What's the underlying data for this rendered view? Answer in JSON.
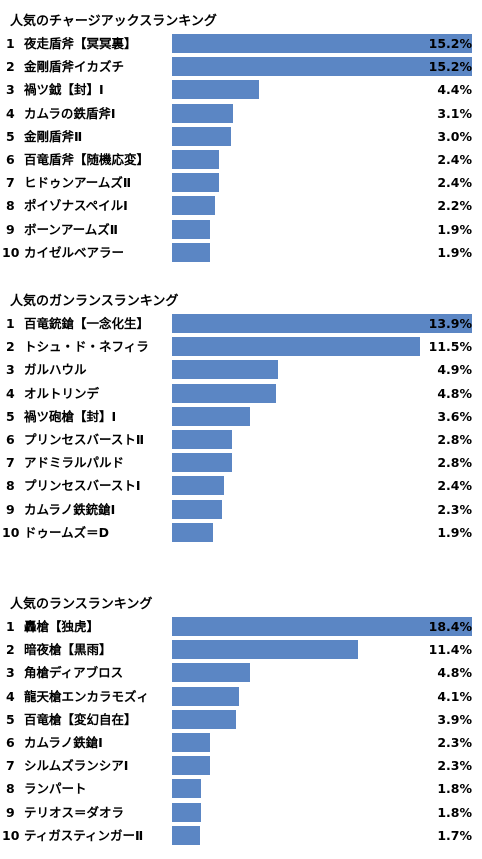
{
  "chart_data": [
    {
      "type": "bar",
      "orientation": "horizontal",
      "title": "人気のチャージアックスランキング",
      "ranks": [
        "1",
        "2",
        "3",
        "4",
        "5",
        "6",
        "7",
        "8",
        "9",
        "10"
      ],
      "categories": [
        "夜走盾斧【冥冥裏】",
        "金剛盾斧イカズチ",
        "禍ツ鉞【封】Ⅰ",
        "カムラの鉄盾斧Ⅰ",
        "金剛盾斧Ⅱ",
        "百竜盾斧【随機応変】",
        "ヒドゥンアームズⅡ",
        "ポイゾナスペイルⅠ",
        "ボーンアームズⅡ",
        "カイゼルベアラー"
      ],
      "values": [
        15.2,
        15.2,
        4.4,
        3.1,
        3.0,
        2.4,
        2.4,
        2.2,
        1.9,
        1.9
      ],
      "labels": [
        "15.2%",
        "15.2%",
        "4.4%",
        "3.1%",
        "3.0%",
        "2.4%",
        "2.4%",
        "2.2%",
        "1.9%",
        "1.9%"
      ],
      "xlim": [
        0,
        15.2
      ],
      "grid": false
    },
    {
      "type": "bar",
      "orientation": "horizontal",
      "title": "人気のガンランスランキング",
      "ranks": [
        "1",
        "2",
        "3",
        "4",
        "5",
        "6",
        "7",
        "8",
        "9",
        "10"
      ],
      "categories": [
        "百竜銃鎗【一念化生】",
        "トシュ・ド・ネフィラ",
        "ガルハウル",
        "オルトリンデ",
        "禍ツ砲槍【封】Ⅰ",
        "プリンセスバーストⅡ",
        "アドミラルパルド",
        "プリンセスバーストⅠ",
        "カムラノ鉄銃鎗Ⅰ",
        "ドゥームズ＝D"
      ],
      "values": [
        13.9,
        11.5,
        4.9,
        4.8,
        3.6,
        2.8,
        2.8,
        2.4,
        2.3,
        1.9
      ],
      "labels": [
        "13.9%",
        "11.5%",
        "4.9%",
        "4.8%",
        "3.6%",
        "2.8%",
        "2.8%",
        "2.4%",
        "2.3%",
        "1.9%"
      ],
      "xlim": [
        0,
        13.9
      ],
      "grid": false
    },
    {
      "type": "bar",
      "orientation": "horizontal",
      "title": "人気のランスランキング",
      "ranks": [
        "1",
        "2",
        "3",
        "4",
        "5",
        "6",
        "7",
        "8",
        "9",
        "10"
      ],
      "categories": [
        "轟槍【独虎】",
        "暗夜槍【黒雨】",
        "角槍ディアブロス",
        "龍天槍エンカラモズィ",
        "百竜槍【変幻自在】",
        "カムラノ鉄鎗Ⅰ",
        "シルムズランシアⅠ",
        "ランパート",
        "テリオス＝ダオラ",
        "ティガスティンガーⅡ"
      ],
      "values": [
        18.4,
        11.4,
        4.8,
        4.1,
        3.9,
        2.3,
        2.3,
        1.8,
        1.8,
        1.7
      ],
      "labels": [
        "18.4%",
        "11.4%",
        "4.8%",
        "4.1%",
        "3.9%",
        "2.3%",
        "2.3%",
        "1.8%",
        "1.8%",
        "1.7%"
      ],
      "xlim": [
        0,
        18.4
      ],
      "grid": false
    }
  ]
}
